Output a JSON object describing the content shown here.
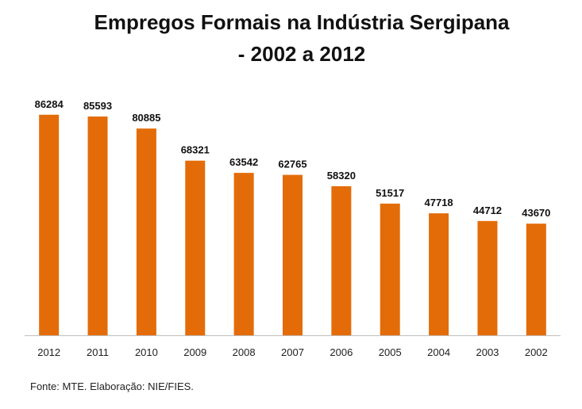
{
  "chart_data": {
    "type": "bar",
    "title_line1": "Empregos Formais na Indústria Sergipana",
    "title_line2": "- 2002 a 2012",
    "categories": [
      "2012",
      "2011",
      "2010",
      "2009",
      "2008",
      "2007",
      "2006",
      "2005",
      "2004",
      "2003",
      "2002"
    ],
    "values": [
      86284,
      85593,
      80885,
      68321,
      63542,
      62765,
      58320,
      51517,
      47718,
      44712,
      43670
    ],
    "ylim": [
      0,
      89000
    ],
    "bar_color": "#E36C09",
    "xlabel": "",
    "ylabel": ""
  },
  "source": "Fonte: MTE. Elaboração: NIE/FIES."
}
